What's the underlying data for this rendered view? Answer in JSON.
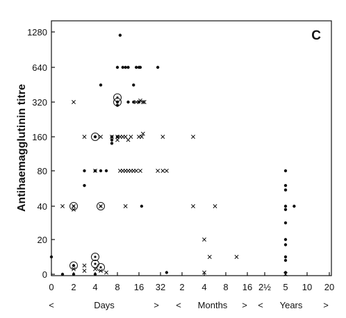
{
  "chart_data": {
    "type": "scatter",
    "panel_label": "C",
    "ylabel": "Antihaemagglutinin titre",
    "y_ticks": [
      "0",
      "20",
      "40",
      "80",
      "160",
      "320",
      "640",
      "1280"
    ],
    "x_ticks": [
      "0",
      "2",
      "4",
      "8",
      "16",
      "32",
      "2",
      "4",
      "8",
      "16",
      "2½",
      "5",
      "10",
      "20"
    ],
    "x_spans": [
      {
        "left": "<",
        "label": "Days",
        "right": ">"
      },
      {
        "left": "<",
        "label": "Months",
        "right": ">"
      },
      {
        "left": "<",
        "label": "Years",
        "right": ">"
      }
    ],
    "series": [
      {
        "marker": "dot",
        "points": [
          {
            "x": "0d",
            "y": 10
          },
          {
            "x": "1d",
            "y": 0
          },
          {
            "x": "2d",
            "y": 0
          },
          {
            "x": "2d",
            "y": 5
          },
          {
            "x": "3d",
            "y": 60
          },
          {
            "x": "3d",
            "y": 80
          },
          {
            "x": "4d",
            "y": 0
          },
          {
            "x": "4d",
            "y": 80
          },
          {
            "x": "4d",
            "y": 160
          },
          {
            "x": "5d",
            "y": 80
          },
          {
            "x": "5d",
            "y": 450
          },
          {
            "x": "6d",
            "y": 80
          },
          {
            "x": "7d",
            "y": 160
          },
          {
            "x": "7d",
            "y": 150
          },
          {
            "x": "7d",
            "y": 140
          },
          {
            "x": "8d",
            "y": 320
          },
          {
            "x": "8d",
            "y": 300
          },
          {
            "x": "8d",
            "y": 160
          },
          {
            "x": "8d",
            "y": 640
          },
          {
            "x": "9d",
            "y": 1200
          },
          {
            "x": "10d",
            "y": 640
          },
          {
            "x": "11d",
            "y": 640
          },
          {
            "x": "12d",
            "y": 640
          },
          {
            "x": "12d",
            "y": 320
          },
          {
            "x": "14d",
            "y": 320
          },
          {
            "x": "14d",
            "y": 450
          },
          {
            "x": "15d",
            "y": 640
          },
          {
            "x": "16d",
            "y": 640
          },
          {
            "x": "16d",
            "y": 320
          },
          {
            "x": "17d",
            "y": 640
          },
          {
            "x": "18d",
            "y": 40
          },
          {
            "x": "30d",
            "y": 640
          },
          {
            "x": "40d",
            "y": 1
          },
          {
            "x": "5y",
            "y": 80
          },
          {
            "x": "5y",
            "y": 60
          },
          {
            "x": "5y",
            "y": 55
          },
          {
            "x": "5y",
            "y": 40
          },
          {
            "x": "5y",
            "y": 38
          },
          {
            "x": "5y",
            "y": 30
          },
          {
            "x": "5y",
            "y": 20
          },
          {
            "x": "5y",
            "y": 17
          },
          {
            "x": "5y",
            "y": 10
          },
          {
            "x": "5y",
            "y": 8
          },
          {
            "x": "5y",
            "y": 1
          },
          {
            "x": "7y",
            "y": 40
          }
        ]
      },
      {
        "marker": "cross",
        "points": [
          {
            "x": "1d",
            "y": 40
          },
          {
            "x": "2d",
            "y": 320
          },
          {
            "x": "2d",
            "y": 40
          },
          {
            "x": "2d",
            "y": 38
          },
          {
            "x": "2d",
            "y": 3
          },
          {
            "x": "3d",
            "y": 160
          },
          {
            "x": "3d",
            "y": 5
          },
          {
            "x": "3d",
            "y": 2
          },
          {
            "x": "4d",
            "y": 80
          },
          {
            "x": "4d",
            "y": 3
          },
          {
            "x": "5d",
            "y": 160
          },
          {
            "x": "5d",
            "y": 40
          },
          {
            "x": "5d",
            "y": 2
          },
          {
            "x": "6d",
            "y": 1
          },
          {
            "x": "7d",
            "y": 160
          },
          {
            "x": "8d",
            "y": 160
          },
          {
            "x": "8d",
            "y": 150
          },
          {
            "x": "9d",
            "y": 160
          },
          {
            "x": "9d",
            "y": 80
          },
          {
            "x": "10d",
            "y": 160
          },
          {
            "x": "10d",
            "y": 80
          },
          {
            "x": "11d",
            "y": 160
          },
          {
            "x": "11d",
            "y": 80
          },
          {
            "x": "11d",
            "y": 40
          },
          {
            "x": "12d",
            "y": 150
          },
          {
            "x": "12d",
            "y": 80
          },
          {
            "x": "13d",
            "y": 160
          },
          {
            "x": "13d",
            "y": 80
          },
          {
            "x": "14d",
            "y": 80
          },
          {
            "x": "15d",
            "y": 80
          },
          {
            "x": "15d",
            "y": 320
          },
          {
            "x": "16d",
            "y": 160
          },
          {
            "x": "17d",
            "y": 330
          },
          {
            "x": "17d",
            "y": 80
          },
          {
            "x": "18d",
            "y": 160
          },
          {
            "x": "19d",
            "y": 170
          },
          {
            "x": "19d",
            "y": 320
          },
          {
            "x": "20d",
            "y": 320
          },
          {
            "x": "30d",
            "y": 80
          },
          {
            "x": "35d",
            "y": 160
          },
          {
            "x": "35d",
            "y": 80
          },
          {
            "x": "40d",
            "y": 80
          },
          {
            "x": "3m",
            "y": 160
          },
          {
            "x": "3m",
            "y": 40
          },
          {
            "x": "4m",
            "y": 20
          },
          {
            "x": "4m",
            "y": 1
          },
          {
            "x": "5m",
            "y": 10
          },
          {
            "x": "6m",
            "y": 40
          },
          {
            "x": "12m",
            "y": 10
          },
          {
            "x": "5y",
            "y": 0
          }
        ]
      },
      {
        "marker": "circled",
        "points": [
          {
            "x": "2d",
            "y": 40
          },
          {
            "x": "2d",
            "y": 5
          },
          {
            "x": "4d",
            "y": 160
          },
          {
            "x": "4d",
            "y": 10
          },
          {
            "x": "4d",
            "y": 6
          },
          {
            "x": "5d",
            "y": 40
          },
          {
            "x": "5d",
            "y": 4
          },
          {
            "x": "8d",
            "y": 350
          },
          {
            "x": "8d",
            "y": 320
          }
        ]
      }
    ]
  }
}
